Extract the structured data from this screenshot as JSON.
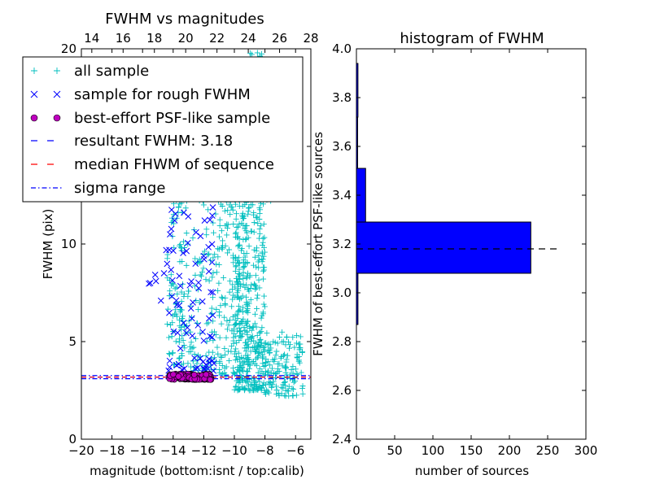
{
  "chart_data": [
    {
      "type": "scatter",
      "title": "FWHM vs magnitudes",
      "xlabel": "magnitude (bottom:isnt / top:calib)",
      "ylabel": "FWHM (pix)",
      "xlim": [
        -20,
        -5
      ],
      "ylim": [
        0,
        20
      ],
      "xticks": [
        -20,
        -18,
        -16,
        -14,
        -12,
        -10,
        -8,
        -6
      ],
      "xtick_labels": [
        "−20",
        "−18",
        "−16",
        "−14",
        "−12",
        "−10",
        "−8",
        "−6"
      ],
      "yticks": [
        0,
        5,
        10,
        15,
        20
      ],
      "ytick_labels": [
        "0",
        "5",
        "10",
        "15",
        "20"
      ],
      "top_xlim": [
        13.333,
        28
      ],
      "top_xticks": [
        14,
        16,
        18,
        20,
        22,
        24,
        26,
        28
      ],
      "top_xtick_labels": [
        "14",
        "16",
        "18",
        "20",
        "22",
        "24",
        "26",
        "28"
      ],
      "legend": {
        "placement": "upper-left",
        "entries": [
          {
            "label": "all sample",
            "marker": "plus",
            "color": "#00bfbf"
          },
          {
            "label": "sample for rough FWHM",
            "marker": "x",
            "color": "#0000ff"
          },
          {
            "label": "best-effort PSF-like sample",
            "marker": "circle",
            "color": "#bf00bf"
          },
          {
            "label": "resultant FWHM: 3.18",
            "marker": "dashed",
            "color": "#0000ff"
          },
          {
            "label": "median FHWM of sequence",
            "marker": "dashed",
            "color": "#ff0000"
          },
          {
            "label": "sigma range",
            "marker": "dashdot",
            "color": "#0000ff"
          }
        ]
      },
      "series": [
        {
          "name": "all sample",
          "marker": "plus",
          "color": "#00bfbf",
          "clusters": [
            {
              "x": [
                -14.4,
                -13.0
              ],
              "y": [
                3.8,
                14.0
              ],
              "n": 120
            },
            {
              "x": [
                -13.0,
                -11.0
              ],
              "y": [
                3.5,
                19.5
              ],
              "n": 160
            },
            {
              "x": [
                -11.0,
                -9.0
              ],
              "y": [
                3.2,
                19.5
              ],
              "n": 260
            },
            {
              "x": [
                -10.0,
                -8.0
              ],
              "y": [
                2.5,
                12.0
              ],
              "n": 320
            },
            {
              "x": [
                -8.0,
                -5.5
              ],
              "y": [
                2.2,
                5.5
              ],
              "n": 140
            },
            {
              "x": [
                -10.5,
                -7.5
              ],
              "y": [
                12.0,
                19.8
              ],
              "n": 90
            }
          ]
        },
        {
          "name": "sample for rough FWHM",
          "marker": "x",
          "color": "#0000ff",
          "clusters": [
            {
              "x": [
                -14.5,
                -11.3
              ],
              "y": [
                3.5,
                12.0
              ],
              "n": 80
            },
            {
              "x": [
                -15.6,
                -13.8
              ],
              "y": [
                7.0,
                8.5
              ],
              "n": 4
            }
          ],
          "points": [
            [
              -15.5,
              8.0
            ],
            [
              -14.8,
              7.1
            ],
            [
              -14.6,
              8.5
            ]
          ]
        },
        {
          "name": "best-effort PSF-like sample",
          "marker": "circle",
          "color": "#bf00bf",
          "clusters": [
            {
              "x": [
                -14.3,
                -11.5
              ],
              "y": [
                3.05,
                3.35
              ],
              "n": 180
            }
          ]
        }
      ],
      "hlines": [
        {
          "name": "resultant FWHM: 3.18",
          "y": 3.18,
          "style": "dashed",
          "color": "#0000ff"
        },
        {
          "name": "median FHWM of sequence",
          "y": 3.18,
          "style": "dashed",
          "color": "#ff0000"
        },
        {
          "name": "sigma range",
          "y": 3.1,
          "style": "dashdot",
          "color": "#0000ff"
        },
        {
          "name": "sigma range",
          "y": 3.26,
          "style": "dashdot",
          "color": "#0000ff"
        }
      ],
      "grid": false
    },
    {
      "type": "bar",
      "orientation": "horizontal",
      "title": "histogram of FWHM",
      "xlabel": "number of sources",
      "ylabel": "FWHM of best-effort PSF-like sources",
      "xlim": [
        0,
        300
      ],
      "ylim": [
        2.4,
        4.0
      ],
      "xticks": [
        0,
        50,
        100,
        150,
        200,
        250,
        300
      ],
      "xtick_labels": [
        "0",
        "50",
        "100",
        "150",
        "200",
        "250",
        "300"
      ],
      "yticks": [
        2.4,
        2.6,
        2.8,
        3.0,
        3.2,
        3.4,
        3.6,
        3.8,
        4.0
      ],
      "ytick_labels": [
        "2.4",
        "2.6",
        "2.8",
        "3.0",
        "3.2",
        "3.4",
        "3.6",
        "3.8",
        "4.0"
      ],
      "bins": [
        {
          "y0": 2.87,
          "y1": 3.08,
          "count": 2
        },
        {
          "y0": 3.08,
          "y1": 3.29,
          "count": 228
        },
        {
          "y0": 3.29,
          "y1": 3.51,
          "count": 12
        },
        {
          "y0": 3.51,
          "y1": 3.72,
          "count": 1
        },
        {
          "y0": 3.72,
          "y1": 3.94,
          "count": 2
        }
      ],
      "bar_color": "#0000ff",
      "reference_line": {
        "y": 3.18,
        "x_range": [
          0,
          262
        ],
        "style": "dashed",
        "color": "#000000"
      },
      "grid": false
    }
  ]
}
